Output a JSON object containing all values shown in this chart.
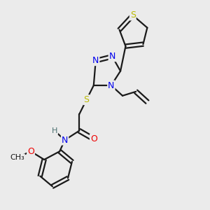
{
  "bg_color": "#ebebeb",
  "bond_color": "#1a1a1a",
  "atom_colors": {
    "N": "#0000ee",
    "S": "#bbbb00",
    "O": "#ee0000",
    "H": "#4a7070",
    "C": "#1a1a1a"
  },
  "figsize": [
    3.0,
    3.0
  ],
  "dpi": 100,
  "xlim": [
    0,
    10
  ],
  "ylim": [
    0,
    10
  ]
}
